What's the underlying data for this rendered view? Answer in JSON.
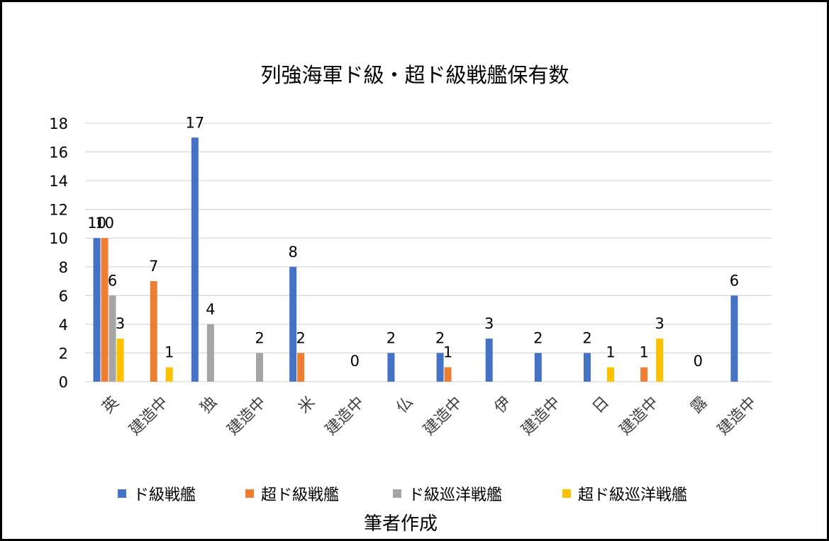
{
  "chart_data": {
    "type": "bar",
    "title": "列強海軍ド級・超ド級戦艦保有数",
    "categories": [
      "英",
      "建造中",
      "独",
      "建造中",
      "米",
      "建造中",
      "仏",
      "建造中",
      "伊",
      "建造中",
      "日",
      "建造中",
      "露",
      "建造中"
    ],
    "series": [
      {
        "name": "ド級戦艦",
        "color": "#4472C4",
        "values": [
          10,
          null,
          17,
          null,
          8,
          null,
          2,
          2,
          3,
          2,
          2,
          null,
          null,
          6
        ]
      },
      {
        "name": "超ド級戦艦",
        "color": "#ED7D31",
        "values": [
          10,
          7,
          null,
          null,
          2,
          null,
          null,
          1,
          null,
          null,
          null,
          1,
          null,
          null
        ]
      },
      {
        "name": "ド級巡洋戦艦",
        "color": "#A5A5A5",
        "values": [
          6,
          null,
          4,
          2,
          null,
          null,
          null,
          null,
          null,
          null,
          null,
          null,
          null,
          null
        ]
      },
      {
        "name": "超ド級巡洋戦艦",
        "color": "#FFC000",
        "values": [
          3,
          1,
          null,
          null,
          null,
          null,
          null,
          null,
          null,
          null,
          1,
          3,
          null,
          null
        ]
      }
    ],
    "extra_labels": [
      {
        "category_index": 5,
        "text": "0"
      },
      {
        "category_index": 12,
        "text": "0"
      }
    ],
    "ylim": [
      0,
      18
    ],
    "yticks": [
      "0",
      "2",
      "4",
      "6",
      "8",
      "10",
      "12",
      "14",
      "16",
      "18"
    ],
    "grid": true,
    "legend": "bottom"
  },
  "footer": "筆者作成"
}
